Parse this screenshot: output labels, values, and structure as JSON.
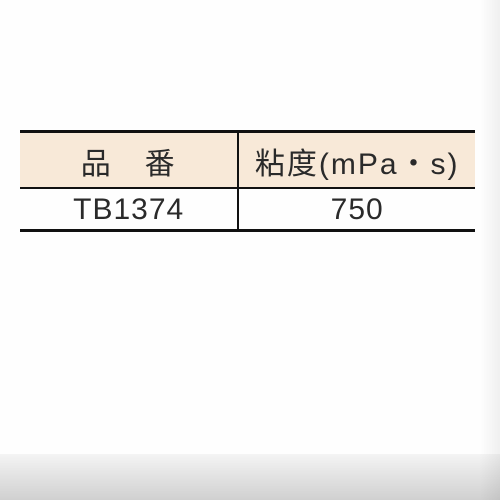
{
  "table": {
    "header_bg": "#f8e9d8",
    "border_color": "#111111",
    "text_color": "#2a2a2a",
    "font_size_pt": 22,
    "columns": [
      {
        "label": "品　番",
        "width_pct": 48,
        "align": "center"
      },
      {
        "label": "粘度(mPa・s)",
        "width_pct": 52,
        "align": "center"
      }
    ],
    "rows": [
      [
        "TB1374",
        "750"
      ]
    ]
  }
}
